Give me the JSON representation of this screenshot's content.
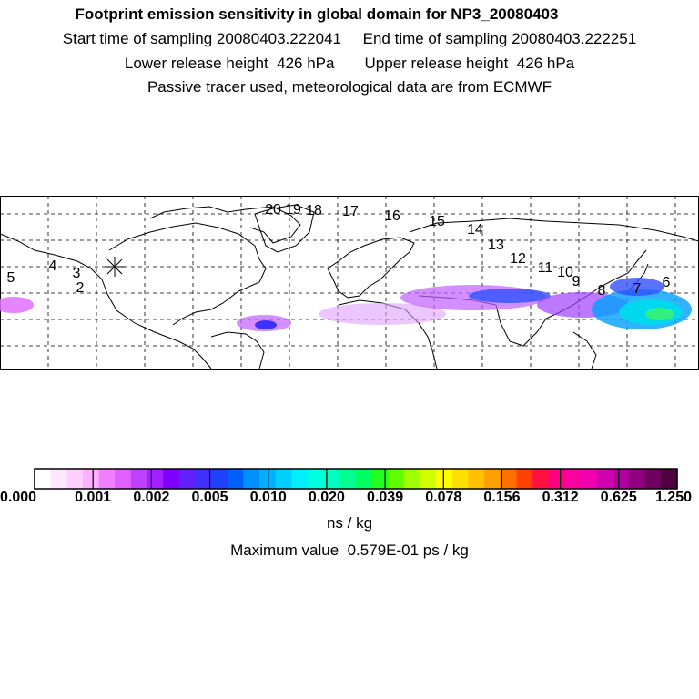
{
  "titles": [
    "Footprint emission sensitivity in global domain for NP3_20080403",
    "Start time of sampling 20080403.222041     End time of sampling 20080403.222251",
    "Lower release height  426 hPa       Upper release height  426 hPa",
    "Passive tracer used, meteorological data are from ECMWF"
  ],
  "trajectory_labels": [
    "2",
    "3",
    "4",
    "5",
    "6",
    "7",
    "8",
    "9",
    "10",
    "11",
    "12",
    "13",
    "14",
    "15",
    "16",
    "17",
    "18",
    "19",
    "20"
  ],
  "colorbar": {
    "tick_labels": [
      "0.000",
      "0.001",
      "0.002",
      "0.005",
      "0.010",
      "0.020",
      "0.039",
      "0.078",
      "0.156",
      "0.312",
      "0.625",
      "1.250"
    ],
    "colors": [
      "#ffffff",
      "#ffe8ff",
      "#ffd0ff",
      "#ffb0ff",
      "#f080ff",
      "#e060ff",
      "#c040ff",
      "#a020ff",
      "#8000ff",
      "#6020ff",
      "#4030ff",
      "#2040ff",
      "#0060ff",
      "#0090ff",
      "#00b0ff",
      "#00d0ff",
      "#00f0ff",
      "#00ffe0",
      "#00ffc0",
      "#00ff90",
      "#00ff60",
      "#20ff20",
      "#60ff00",
      "#a0ff00",
      "#d0ff00",
      "#ffff00",
      "#ffe000",
      "#ffc000",
      "#ffa000",
      "#ff7000",
      "#ff4000",
      "#ff1040",
      "#ff0080",
      "#ff00a0",
      "#f000b0",
      "#d000b0",
      "#b000a0",
      "#900080",
      "#700060",
      "#500040"
    ],
    "units": "ns / kg"
  },
  "max_value_text": "Maximum value  0.579E-01 ps / kg"
}
